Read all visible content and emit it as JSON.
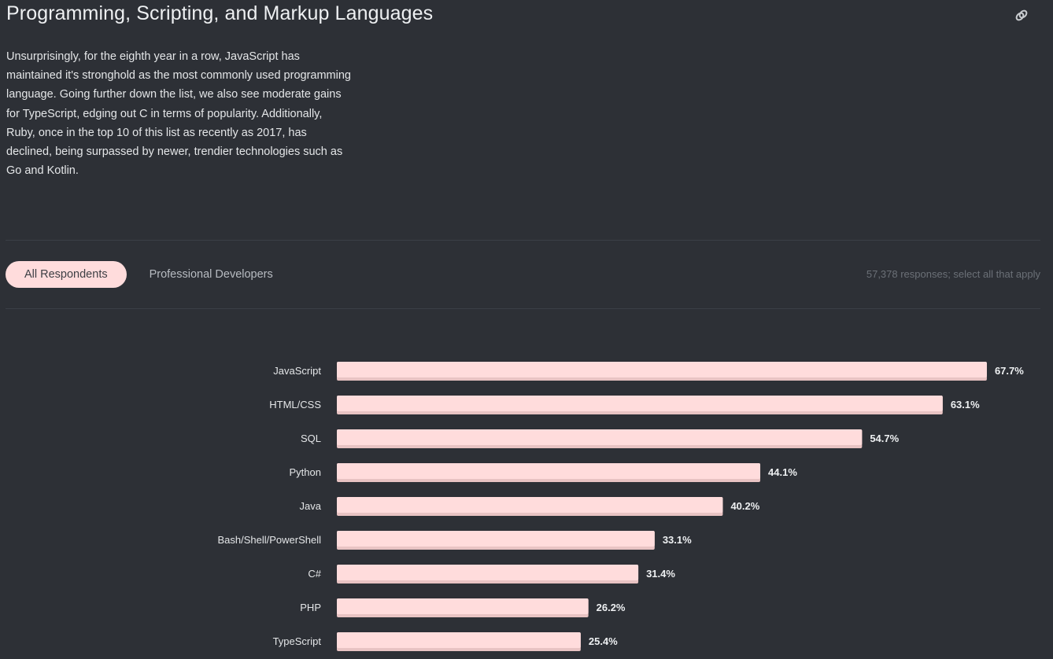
{
  "header": {
    "title": "Programming, Scripting, and Markup Languages",
    "link_icon": "link-icon"
  },
  "description": "Unsurprisingly, for the eighth year in a row, JavaScript has maintained it's stronghold as the most commonly used programming language. Going further down the list, we also see moderate gains for TypeScript, edging out C in terms of popularity. Additionally, Ruby, once in the top 10 of this list as recently as 2017, has declined, being surpassed by newer, trendier technologies such as Go and Kotlin.",
  "tabs": [
    {
      "label": "All Respondents",
      "active": true
    },
    {
      "label": "Professional Developers",
      "active": false
    }
  ],
  "responses_note": "57,378 responses; select all that apply",
  "colors": {
    "background": "#2d3036",
    "bar": "#ffdcdc",
    "bar_shadow": "#e8c3c3",
    "active_tab": "#ffdcdc"
  },
  "chart_data": {
    "type": "bar",
    "orientation": "horizontal",
    "title": "",
    "xlabel": "",
    "ylabel": "",
    "xlim": [
      0,
      100
    ],
    "grid": false,
    "unit": "%",
    "categories": [
      "JavaScript",
      "HTML/CSS",
      "SQL",
      "Python",
      "Java",
      "Bash/Shell/PowerShell",
      "C#",
      "PHP",
      "TypeScript"
    ],
    "values": [
      67.7,
      63.1,
      54.7,
      44.1,
      40.2,
      33.1,
      31.4,
      26.2,
      25.4
    ],
    "data_labels": [
      "67.7%",
      "63.1%",
      "54.7%",
      "44.1%",
      "40.2%",
      "33.1%",
      "31.4%",
      "26.2%",
      "25.4%"
    ]
  }
}
